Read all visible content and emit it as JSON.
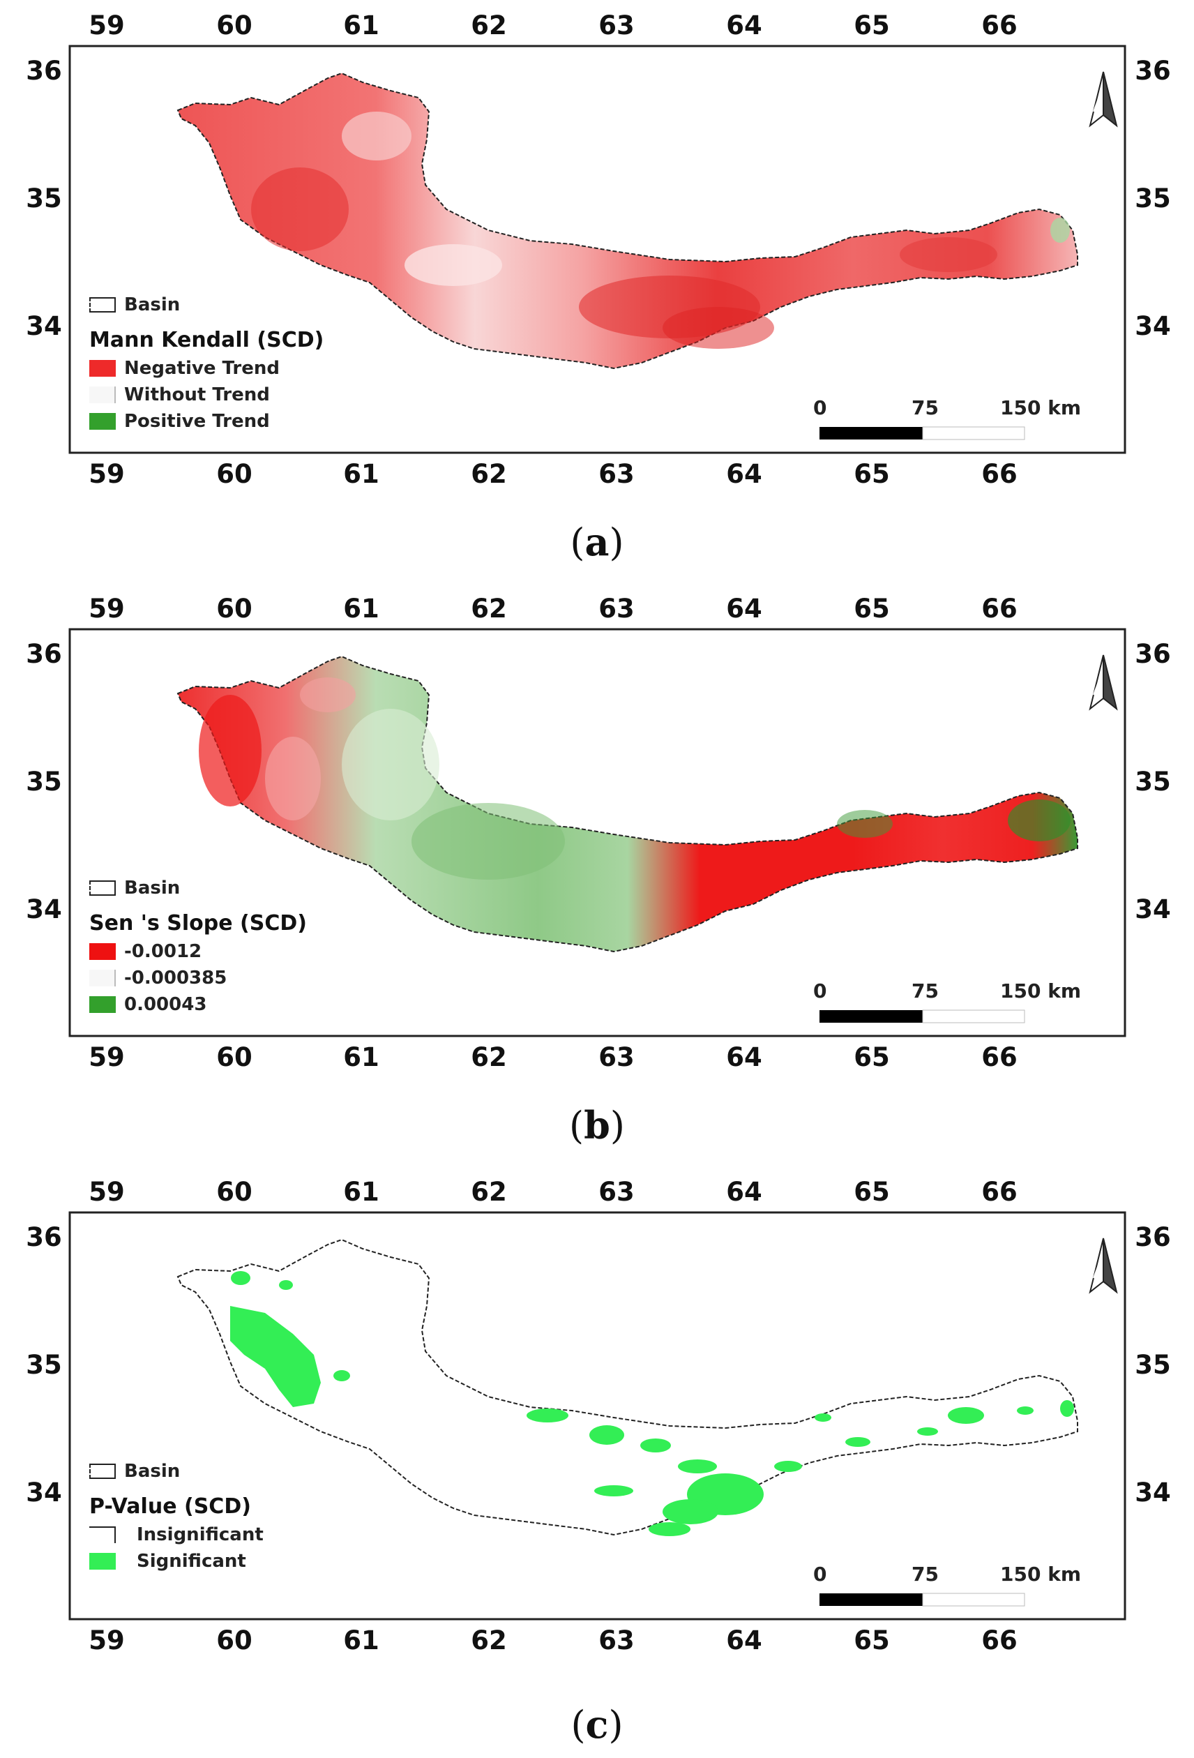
{
  "panels": [
    {
      "id": "a",
      "label_letter": "a",
      "legend": {
        "basin": "Basin",
        "title": "Mann Kendall  (SCD)",
        "items": [
          {
            "label": "Negative Trend",
            "color": "#ee2a2a"
          },
          {
            "label": "Without Trend",
            "color": "#f7f7f7"
          },
          {
            "label": "Positive Trend",
            "color": "#33a02c"
          }
        ]
      },
      "scale": {
        "labels": [
          "0",
          "75",
          "150 km"
        ]
      }
    },
    {
      "id": "b",
      "label_letter": "b",
      "legend": {
        "basin": "Basin",
        "title": "Sen 's Slope  (SCD)",
        "items": [
          {
            "label": "-0.0012",
            "color": "#ee1111"
          },
          {
            "label": "-0.000385",
            "color": "#f7f7f7"
          },
          {
            "label": "0.00043",
            "color": "#33a02c"
          }
        ]
      },
      "scale": {
        "labels": [
          "0",
          "75",
          "150 km"
        ]
      }
    },
    {
      "id": "c",
      "label_letter": "c",
      "legend": {
        "basin": "Basin",
        "title": "P-Value (SCD)",
        "items": [
          {
            "label": "Insignificant",
            "color": "#ffffff"
          },
          {
            "label": "Significant",
            "color": "#33ee55"
          }
        ]
      },
      "scale": {
        "labels": [
          "0",
          "75",
          "150 km"
        ]
      }
    }
  ],
  "axes": {
    "lon_ticks": [
      "59",
      "60",
      "61",
      "62",
      "63",
      "64",
      "65",
      "66"
    ],
    "lat_ticks": [
      "36",
      "35",
      "34"
    ]
  },
  "colors": {
    "negative": "#ee2a2a",
    "positive": "#33a02c",
    "significant": "#33ee55",
    "light_red": "#f4a0a0",
    "light_green": "#b7dcb1"
  }
}
